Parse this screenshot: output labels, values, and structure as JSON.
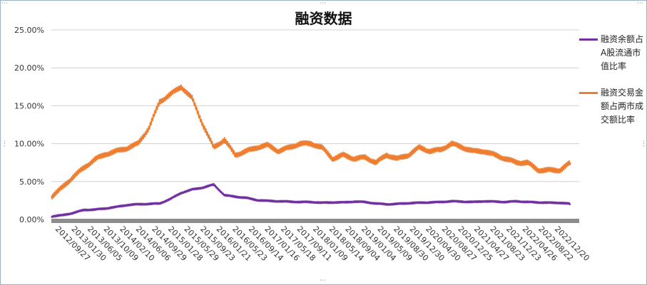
{
  "chart_data": {
    "type": "line",
    "title": "融资数据",
    "xlabel": "",
    "ylabel": "",
    "ylim": [
      0,
      25
    ],
    "y_ticks": [
      "0.00%",
      "5.00%",
      "10.00%",
      "15.00%",
      "20.00%",
      "25.00%"
    ],
    "grid": "horizontal",
    "legend_position": "right",
    "x_tick_labels": [
      "2012/09/27",
      "2013/01/30",
      "2013/06/05",
      "2013/10/09",
      "2014/02/10",
      "2014/06/06",
      "2014/09/29",
      "2015/01/28",
      "2015/05/29",
      "2015/09/23",
      "2016/01/21",
      "2016/05/23",
      "2016/09/14",
      "2017/01/16",
      "2017/05/18",
      "2017/09/11",
      "2018/01/09",
      "2018/05/14",
      "2018/09/04",
      "2019/01/04",
      "2019/05/09",
      "2019/08/30",
      "2019/12/30",
      "2020/04/30",
      "2020/08/27",
      "2020/12/25",
      "2021/04/27",
      "2021/08/23",
      "2021/12/23",
      "2022/04/26",
      "2022/08/22",
      "2022/12/20"
    ],
    "series": [
      {
        "name": "融资余额占A股流通市值比率",
        "color": "#7030a0",
        "values": [
          0.4,
          0.55,
          0.85,
          1.25,
          1.3,
          1.45,
          1.65,
          1.9,
          2.0,
          2.05,
          2.1,
          2.7,
          3.5,
          3.95,
          4.2,
          4.6,
          3.2,
          3.0,
          2.85,
          2.55,
          2.45,
          2.4,
          2.35,
          2.3,
          2.3,
          2.2,
          2.25,
          2.25,
          2.35,
          2.3,
          2.1,
          2.0,
          2.05,
          2.15,
          2.2,
          2.25,
          2.3,
          2.4,
          2.35,
          2.3,
          2.4,
          2.35,
          2.3,
          2.4,
          2.3,
          2.25,
          2.2,
          2.2,
          2.05
        ]
      },
      {
        "name": "融资交易金额占两市成交额比率",
        "color": "#ed7d31",
        "values": [
          3.0,
          4.2,
          5.6,
          6.8,
          7.9,
          8.6,
          9.0,
          9.4,
          10.0,
          12.0,
          15.5,
          16.5,
          17.5,
          16.0,
          12.5,
          9.5,
          10.5,
          8.5,
          9.0,
          9.5,
          9.8,
          9.0,
          9.5,
          10.0,
          10.0,
          9.5,
          8.0,
          8.5,
          8.0,
          8.2,
          7.5,
          8.5,
          8.0,
          8.5,
          9.5,
          9.0,
          9.2,
          10.0,
          9.5,
          9.0,
          9.0,
          8.5,
          8.0,
          7.5,
          7.5,
          6.5,
          6.5,
          6.5,
          7.5
        ]
      }
    ]
  }
}
